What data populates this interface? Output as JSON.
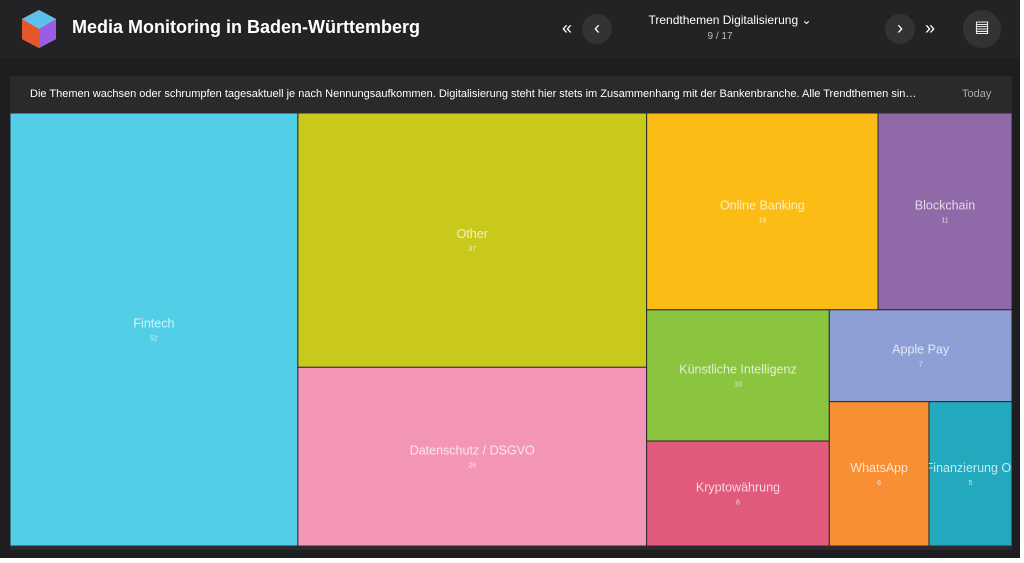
{
  "header": {
    "title": "Media Monitoring in Baden-Württemberg",
    "dashboard": "Trendthemen Digitalisierung",
    "page": "9 / 17"
  },
  "description": {
    "text": "Die Themen wachsen oder schrumpfen tagesaktuell je nach Nennungsaufkommen. Digitalisierung steht hier stets im Zusammenhang mit der Bankenbranche. Alle Trendthemen sin…",
    "period": "Today"
  },
  "chart_data": {
    "type": "treemap",
    "categories": [
      "Fintech",
      "Other",
      "Datenschutz / DSGVO",
      "Online Banking",
      "Blockchain",
      "Künstliche Intelligenz",
      "Kryptowährung",
      "Apple Pay",
      "WhatsApp",
      "Finanzierung Or"
    ],
    "values": [
      52,
      37,
      26,
      19,
      11,
      10,
      8,
      7,
      6,
      5
    ],
    "colors": [
      "#52cfe6",
      "#c8c91b",
      "#f497b6",
      "#fcbc16",
      "#9069a8",
      "#8bc43f",
      "#e05a7b",
      "#8e9fd6",
      "#f98f35",
      "#22a9bd"
    ]
  }
}
